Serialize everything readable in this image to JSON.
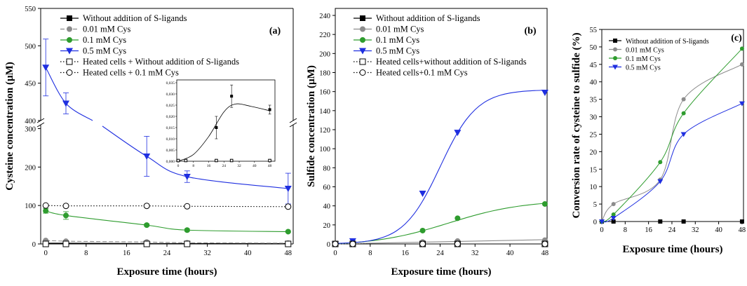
{
  "chart_data": [
    {
      "panel": "(a)",
      "type": "line",
      "xlabel": "Exposure time (hours)",
      "ylabel": "Cysteine concentration (µM)",
      "x_ticks": [
        "0",
        "8",
        "16",
        "24",
        "32",
        "40",
        "48"
      ],
      "y_ticks_lower": [
        "0",
        "100",
        "200",
        "300"
      ],
      "y_ticks_upper": [
        "400",
        "450",
        "500",
        "550"
      ],
      "ylim_lower": [
        0,
        310
      ],
      "ylim_upper": [
        400,
        550
      ],
      "xlim": [
        -1,
        49
      ],
      "series": [
        {
          "name": "Without addition of S-ligands",
          "color": "#000000",
          "marker": "square",
          "line": "solid",
          "x": [
            0,
            4,
            20,
            28,
            48
          ],
          "y": [
            2,
            2,
            1,
            1,
            1
          ],
          "err": [
            0,
            0,
            0,
            0,
            0
          ],
          "fit": "linear"
        },
        {
          "name": "0.01 mM Cys",
          "color": "#8c8c8c",
          "marker": "circle",
          "line": "dashed",
          "x": [
            0,
            4,
            20,
            28,
            48
          ],
          "y": [
            9,
            7,
            5,
            3,
            2
          ],
          "err": [
            0,
            0,
            0,
            0,
            0
          ],
          "fit": "linear"
        },
        {
          "name": "0.1 mM Cys",
          "color": "#2e9c2e",
          "marker": "circle",
          "line": "solid",
          "x": [
            0,
            4,
            20,
            28,
            48
          ],
          "y": [
            86,
            74,
            49,
            36,
            32
          ],
          "err": [
            6,
            10,
            3,
            3,
            2
          ],
          "fit": "smooth"
        },
        {
          "name": "0.5 mM Cys",
          "color": "#1f2fe0",
          "marker": "triangle-down",
          "line": "solid",
          "x": [
            0,
            4,
            20,
            28,
            48
          ],
          "y": [
            471,
            423,
            228,
            175,
            144
          ],
          "err": [
            38,
            14,
            52,
            15,
            40
          ],
          "fit": "smooth"
        },
        {
          "name": "Heated cells + Without addition of S-ligands",
          "color": "#000000",
          "marker": "open-square",
          "line": "dotted",
          "x": [
            0,
            4,
            20,
            28,
            48
          ],
          "y": [
            0,
            0,
            0,
            0,
            0
          ],
          "err": [
            0,
            0,
            0,
            0,
            0
          ],
          "fit": "linear"
        },
        {
          "name": "Heated cells + 0.1 mM Cys",
          "color": "#000000",
          "marker": "open-circle",
          "line": "dotted",
          "x": [
            0,
            4,
            20,
            28,
            48
          ],
          "y": [
            100,
            99,
            99,
            98,
            97
          ],
          "err": [
            0,
            0,
            0,
            0,
            0
          ],
          "fit": "linear"
        }
      ],
      "inset": {
        "x_ticks": [
          "0",
          "8",
          "16",
          "24",
          "32",
          "40",
          "48"
        ],
        "y_ticks": [
          "0,000",
          "0,005",
          "0,010",
          "0,015",
          "0,020",
          "0,025",
          "0,030",
          "0,035"
        ],
        "ylim": [
          0,
          0.035
        ],
        "series": [
          {
            "name": "Without addition of S-ligands",
            "marker": "square",
            "x": [
              20,
              28,
              48
            ],
            "y": [
              0.015,
              0.029,
              0.023
            ],
            "err": [
              0.005,
              0.005,
              0.002
            ]
          },
          {
            "name": "Heated cells + Without addition of S-ligands",
            "marker": "open-square",
            "x": [
              0,
              4,
              20,
              28,
              48
            ],
            "y": [
              0,
              0,
              0,
              0,
              0
            ]
          }
        ]
      }
    },
    {
      "panel": "(b)",
      "type": "line",
      "xlabel": "Exposure time (hours)",
      "ylabel": "Sulfide concentration (µM)",
      "x_ticks": [
        "0",
        "8",
        "16",
        "24",
        "32",
        "40",
        "48"
      ],
      "y_ticks": [
        "0",
        "20",
        "40",
        "60",
        "80",
        "100",
        "120",
        "140",
        "160",
        "180",
        "200",
        "220",
        "240"
      ],
      "ylim": [
        0,
        240
      ],
      "xlim": [
        0,
        48.5
      ],
      "series": [
        {
          "name": "Without addition of S-ligands",
          "color": "#000000",
          "marker": "square",
          "line": "solid",
          "x": [
            0,
            4,
            20,
            28,
            48
          ],
          "y": [
            0,
            0,
            0,
            0,
            0
          ]
        },
        {
          "name": "0.01 mM Cys",
          "color": "#8c8c8c",
          "marker": "circle",
          "line": "solid",
          "x": [
            0,
            4,
            20,
            28,
            48
          ],
          "y": [
            0,
            1,
            2,
            3,
            4
          ]
        },
        {
          "name": "0.1 mM Cys",
          "color": "#2e9c2e",
          "marker": "circle",
          "line": "solid",
          "x": [
            0,
            4,
            20,
            28,
            48
          ],
          "y": [
            0,
            2,
            14,
            27,
            42
          ]
        },
        {
          "name": "0.5 mM Cys",
          "color": "#1f2fe0",
          "marker": "triangle-down",
          "line": "solid",
          "x": [
            0,
            4,
            20,
            28,
            48
          ],
          "y": [
            0,
            3,
            53,
            117,
            159
          ]
        },
        {
          "name": "Heated cells+without addition of S-ligands",
          "color": "#000000",
          "marker": "open-square",
          "line": "dotted",
          "x": [
            0,
            4,
            20,
            28,
            48
          ],
          "y": [
            0,
            0,
            0,
            0,
            0
          ]
        },
        {
          "name": "Heated cells+0.1 mM Cys",
          "color": "#000000",
          "marker": "open-circle",
          "line": "dotted",
          "x": [
            0,
            4,
            20,
            28,
            48
          ],
          "y": [
            0,
            0,
            0,
            0,
            0
          ]
        }
      ]
    },
    {
      "panel": "(c)",
      "type": "line",
      "xlabel": "Exposure time (hours)",
      "ylabel": "Conversion rate of cysteine to sulfide (%)",
      "x_ticks": [
        "0",
        "8",
        "16",
        "24",
        "32",
        "40",
        "48"
      ],
      "y_ticks": [
        "0",
        "5",
        "10",
        "15",
        "20",
        "25",
        "30",
        "35",
        "40",
        "45",
        "50",
        "55"
      ],
      "ylim": [
        0,
        55
      ],
      "xlim": [
        0,
        48.5
      ],
      "series": [
        {
          "name": "Without addition of S-ligands",
          "color": "#000000",
          "marker": "square",
          "x": [
            0,
            4,
            20,
            28,
            48
          ],
          "y": [
            0,
            0,
            0,
            0,
            0
          ]
        },
        {
          "name": "0.01 mM Cys",
          "color": "#8c8c8c",
          "marker": "circle",
          "x": [
            0,
            4,
            20,
            28,
            48
          ],
          "y": [
            0,
            5,
            12,
            35,
            45
          ]
        },
        {
          "name": "0.1 mM Cys",
          "color": "#2e9c2e",
          "marker": "circle",
          "x": [
            0,
            4,
            20,
            28,
            48
          ],
          "y": [
            0,
            2,
            17,
            31,
            49.5
          ]
        },
        {
          "name": "0.5 mM Cys",
          "color": "#1f2fe0",
          "marker": "triangle-down",
          "x": [
            0,
            4,
            20,
            28,
            48
          ],
          "y": [
            0,
            1,
            11.5,
            25,
            33.8
          ]
        }
      ]
    }
  ]
}
